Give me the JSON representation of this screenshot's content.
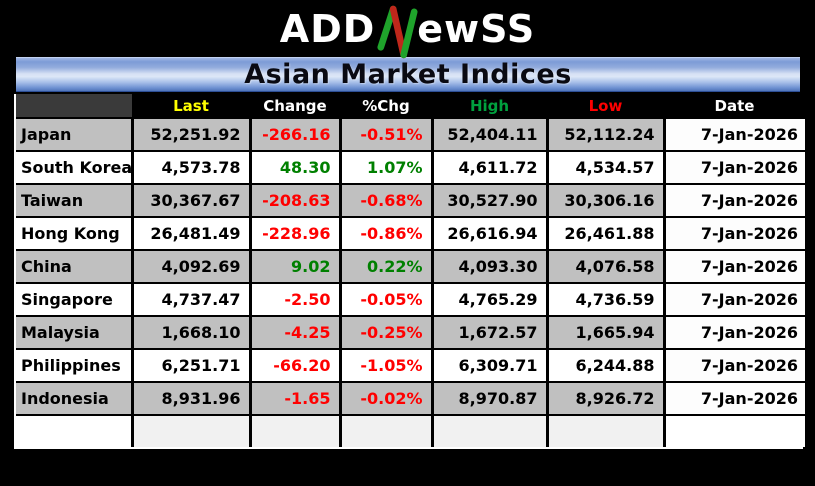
{
  "logo": {
    "text_before": "ADD",
    "stylized_letter": "N",
    "text_after": "ewSS",
    "up_color": "#1fa32b",
    "down_color": "#bf271b"
  },
  "title": "Asian Market Indices",
  "chart_data": {
    "type": "table",
    "title": "Asian Market Indices",
    "columns": [
      {
        "key": "name",
        "label": "",
        "header_color": "#ffffff"
      },
      {
        "key": "last",
        "label": "Last",
        "header_color": "#ffff00"
      },
      {
        "key": "change",
        "label": "Change",
        "header_color": "#ffffff"
      },
      {
        "key": "pct",
        "label": "%Chg",
        "header_color": "#ffffff"
      },
      {
        "key": "high",
        "label": "High",
        "header_color": "#00a13e"
      },
      {
        "key": "low",
        "label": "Low",
        "header_color": "#ff0000"
      },
      {
        "key": "date",
        "label": "Date",
        "header_color": "#ffffff"
      }
    ],
    "rows": [
      {
        "name": "Japan",
        "last": "52,251.92",
        "change": "-266.16",
        "pct": "-0.51%",
        "high": "52,404.11",
        "low": "52,112.24",
        "date": "7-Jan-2026",
        "direction": "down"
      },
      {
        "name": "South Korea",
        "last": "4,573.78",
        "change": "48.30",
        "pct": "1.07%",
        "high": "4,611.72",
        "low": "4,534.57",
        "date": "7-Jan-2026",
        "direction": "up"
      },
      {
        "name": "Taiwan",
        "last": "30,367.67",
        "change": "-208.63",
        "pct": "-0.68%",
        "high": "30,527.90",
        "low": "30,306.16",
        "date": "7-Jan-2026",
        "direction": "down"
      },
      {
        "name": "Hong Kong",
        "last": "26,481.49",
        "change": "-228.96",
        "pct": "-0.86%",
        "high": "26,616.94",
        "low": "26,461.88",
        "date": "7-Jan-2026",
        "direction": "down"
      },
      {
        "name": "China",
        "last": "4,092.69",
        "change": "9.02",
        "pct": "0.22%",
        "high": "4,093.30",
        "low": "4,076.58",
        "date": "7-Jan-2026",
        "direction": "up"
      },
      {
        "name": "Singapore",
        "last": "4,737.47",
        "change": "-2.50",
        "pct": "-0.05%",
        "high": "4,765.29",
        "low": "4,736.59",
        "date": "7-Jan-2026",
        "direction": "down"
      },
      {
        "name": "Malaysia",
        "last": "1,668.10",
        "change": "-4.25",
        "pct": "-0.25%",
        "high": "1,672.57",
        "low": "1,665.94",
        "date": "7-Jan-2026",
        "direction": "down"
      },
      {
        "name": "Philippines",
        "last": "6,251.71",
        "change": "-66.20",
        "pct": "-1.05%",
        "high": "6,309.71",
        "low": "6,244.88",
        "date": "7-Jan-2026",
        "direction": "down"
      },
      {
        "name": "Indonesia",
        "last": "8,931.96",
        "change": "-1.65",
        "pct": "-0.02%",
        "high": "8,970.87",
        "low": "8,926.72",
        "date": "7-Jan-2026",
        "direction": "down"
      }
    ],
    "has_trailing_empty_row": true
  },
  "colors": {
    "positive_value": "#008000",
    "negative_value": "#ff0000",
    "row_alt_silver": "#c0c0c0",
    "row_base_white": "#ffffff",
    "header_bg": "#000000",
    "header_corner_bg": "#3a3a3a",
    "date_column_bg": "#fdfdfd",
    "title_bar_blue": "#4d73b8"
  }
}
